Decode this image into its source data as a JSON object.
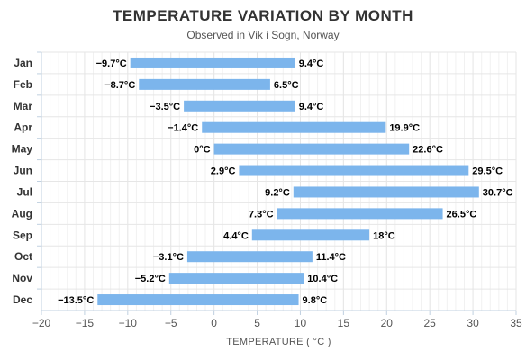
{
  "chart_data": {
    "type": "bar",
    "orientation": "horizontal",
    "title": "TEMPERATURE VARIATION BY MONTH",
    "subtitle": "Observed in Vik i Sogn, Norway",
    "xlabel": "TEMPERATURE ( °C )",
    "ylabel": "",
    "xlim": [
      -20,
      35
    ],
    "x_ticks": [
      -20,
      -15,
      -10,
      -5,
      0,
      5,
      10,
      15,
      20,
      25,
      30,
      35
    ],
    "grid": true,
    "legend": "none",
    "bar_color": "#7cb5ec",
    "categories": [
      "Jan",
      "Feb",
      "Mar",
      "Apr",
      "May",
      "Jun",
      "Jul",
      "Aug",
      "Sep",
      "Oct",
      "Nov",
      "Dec"
    ],
    "low": [
      -9.7,
      -8.7,
      -3.5,
      -1.4,
      0,
      2.9,
      9.2,
      7.3,
      4.4,
      -3.1,
      -5.2,
      -13.5
    ],
    "high": [
      9.4,
      6.5,
      9.4,
      19.9,
      22.6,
      29.5,
      30.7,
      26.5,
      18,
      11.4,
      10.4,
      9.8
    ],
    "low_labels": [
      "−9.7°C",
      "−8.7°C",
      "−3.5°C",
      "−1.4°C",
      "0°C",
      "2.9°C",
      "9.2°C",
      "7.3°C",
      "4.4°C",
      "−3.1°C",
      "−5.2°C",
      "−13.5°C"
    ],
    "high_labels": [
      "9.4°C",
      "6.5°C",
      "9.4°C",
      "19.9°C",
      "22.6°C",
      "29.5°C",
      "30.7°C",
      "26.5°C",
      "18°C",
      "11.4°C",
      "10.4°C",
      "9.8°C"
    ],
    "x_tick_labels": [
      "−20",
      "−15",
      "−10",
      "−5",
      "0",
      "5",
      "10",
      "15",
      "20",
      "25",
      "30",
      "35"
    ]
  }
}
